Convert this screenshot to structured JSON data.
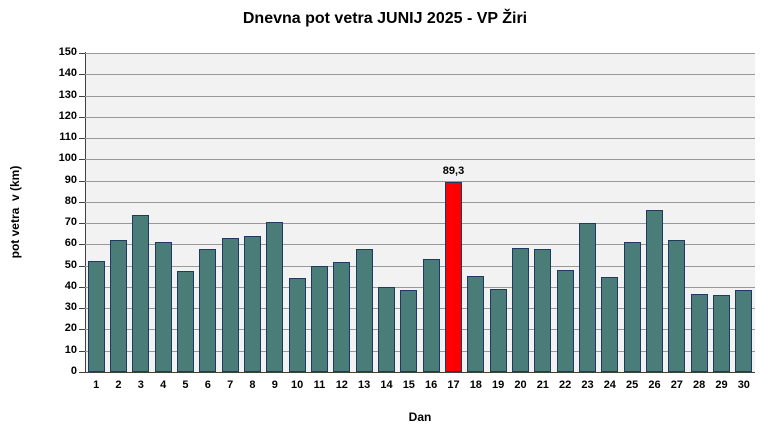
{
  "chart_data": {
    "type": "bar",
    "title": "Dnevna pot vetra JUNIJ 2025 - VP Žiri",
    "xlabel": "Dan",
    "ylabel": "pot vetra  v (km)",
    "ylim": [
      0,
      150
    ],
    "yticks": [
      0,
      10,
      20,
      30,
      40,
      50,
      60,
      70,
      80,
      90,
      100,
      110,
      120,
      130,
      140,
      150
    ],
    "grid": true,
    "legend": false,
    "categories": [
      "1",
      "2",
      "3",
      "4",
      "5",
      "6",
      "7",
      "8",
      "9",
      "10",
      "11",
      "12",
      "13",
      "14",
      "15",
      "16",
      "17",
      "18",
      "19",
      "20",
      "21",
      "22",
      "23",
      "24",
      "25",
      "26",
      "27",
      "28",
      "29",
      "30"
    ],
    "values": [
      52,
      62,
      74,
      61,
      47.5,
      58,
      63,
      64,
      70.5,
      44,
      50,
      51.5,
      58,
      40,
      38.5,
      53,
      89.3,
      45,
      39,
      58.5,
      58,
      48,
      70,
      44.5,
      61,
      76,
      62,
      36.5,
      36,
      38.5
    ],
    "highlight": {
      "category": "17",
      "value": 89.3,
      "label": "89,3"
    },
    "colors": {
      "bar_fill": "#4A7C78",
      "bar_border": "#1F3864",
      "highlight_fill": "#FF0000",
      "plot_bg": "#F2F2F2",
      "gridline": "#999999",
      "axis": "#404040",
      "text": "#000000"
    }
  }
}
